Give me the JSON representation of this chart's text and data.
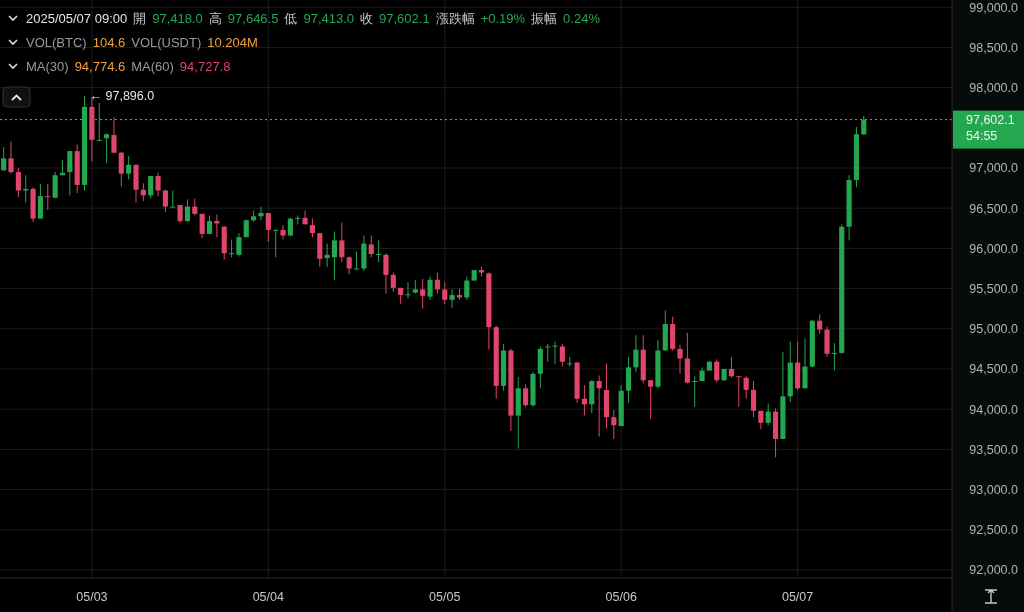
{
  "chart_data": {
    "type": "candlestick",
    "x": [
      "2025-05-02T12:00",
      "2025-05-02T13:00",
      "2025-05-02T14:00",
      "2025-05-02T15:00",
      "2025-05-02T16:00",
      "2025-05-02T17:00",
      "2025-05-02T18:00",
      "2025-05-02T19:00",
      "2025-05-02T20:00",
      "2025-05-02T21:00",
      "2025-05-02T22:00",
      "2025-05-02T23:00",
      "2025-05-03T00:00",
      "2025-05-03T01:00",
      "2025-05-03T02:00",
      "2025-05-03T03:00",
      "2025-05-03T04:00",
      "2025-05-03T05:00",
      "2025-05-03T06:00",
      "2025-05-03T07:00",
      "2025-05-03T08:00",
      "2025-05-03T09:00",
      "2025-05-03T10:00",
      "2025-05-03T11:00",
      "2025-05-03T12:00",
      "2025-05-03T13:00",
      "2025-05-03T14:00",
      "2025-05-03T15:00",
      "2025-05-03T16:00",
      "2025-05-03T17:00",
      "2025-05-03T18:00",
      "2025-05-03T19:00",
      "2025-05-03T20:00",
      "2025-05-03T21:00",
      "2025-05-03T22:00",
      "2025-05-03T23:00",
      "2025-05-04T00:00",
      "2025-05-04T01:00",
      "2025-05-04T02:00",
      "2025-05-04T03:00",
      "2025-05-04T04:00",
      "2025-05-04T05:00",
      "2025-05-04T06:00",
      "2025-05-04T07:00",
      "2025-05-04T08:00",
      "2025-05-04T09:00",
      "2025-05-04T10:00",
      "2025-05-04T11:00",
      "2025-05-04T12:00",
      "2025-05-04T13:00",
      "2025-05-04T14:00",
      "2025-05-04T15:00",
      "2025-05-04T16:00",
      "2025-05-04T17:00",
      "2025-05-04T18:00",
      "2025-05-04T19:00",
      "2025-05-04T20:00",
      "2025-05-04T21:00",
      "2025-05-04T22:00",
      "2025-05-04T23:00",
      "2025-05-05T00:00",
      "2025-05-05T01:00",
      "2025-05-05T02:00",
      "2025-05-05T03:00",
      "2025-05-05T04:00",
      "2025-05-05T05:00",
      "2025-05-05T06:00",
      "2025-05-05T07:00",
      "2025-05-05T08:00",
      "2025-05-05T09:00",
      "2025-05-05T10:00",
      "2025-05-05T11:00",
      "2025-05-05T12:00",
      "2025-05-05T13:00",
      "2025-05-05T14:00",
      "2025-05-05T15:00",
      "2025-05-05T16:00",
      "2025-05-05T17:00",
      "2025-05-05T18:00",
      "2025-05-05T19:00",
      "2025-05-05T20:00",
      "2025-05-05T21:00",
      "2025-05-05T22:00",
      "2025-05-05T23:00",
      "2025-05-06T00:00",
      "2025-05-06T01:00",
      "2025-05-06T02:00",
      "2025-05-06T03:00",
      "2025-05-06T04:00",
      "2025-05-06T05:00",
      "2025-05-06T06:00",
      "2025-05-06T07:00",
      "2025-05-06T08:00",
      "2025-05-06T09:00",
      "2025-05-06T10:00",
      "2025-05-06T11:00",
      "2025-05-06T12:00",
      "2025-05-06T13:00",
      "2025-05-06T14:00",
      "2025-05-06T15:00",
      "2025-05-06T16:00",
      "2025-05-06T17:00",
      "2025-05-06T18:00",
      "2025-05-06T19:00",
      "2025-05-06T20:00",
      "2025-05-06T21:00",
      "2025-05-06T22:00",
      "2025-05-06T23:00",
      "2025-05-07T00:00",
      "2025-05-07T01:00",
      "2025-05-07T02:00",
      "2025-05-07T03:00",
      "2025-05-07T04:00",
      "2025-05-07T05:00",
      "2025-05-07T06:00",
      "2025-05-07T07:00",
      "2025-05-07T08:00",
      "2025-05-07T09:00"
    ],
    "ohlc": [
      [
        96970,
        97260,
        96970,
        97120
      ],
      [
        97120,
        97330,
        96930,
        96950
      ],
      [
        96950,
        97000,
        96640,
        96720
      ],
      [
        96720,
        96910,
        96570,
        96740
      ],
      [
        96740,
        96760,
        96330,
        96370
      ],
      [
        96370,
        96800,
        96370,
        96650
      ],
      [
        96650,
        96800,
        96480,
        96640
      ],
      [
        96630,
        96950,
        96630,
        96910
      ],
      [
        96910,
        97100,
        96910,
        96940
      ],
      [
        96950,
        97210,
        96660,
        97210
      ],
      [
        97210,
        97290,
        96690,
        96790
      ],
      [
        96790,
        97896,
        96720,
        97760
      ],
      [
        97760,
        97880,
        97080,
        97350
      ],
      [
        97340,
        97810,
        97330,
        97350
      ],
      [
        97370,
        97430,
        97060,
        97420
      ],
      [
        97410,
        97630,
        97190,
        97190
      ],
      [
        97190,
        97200,
        96770,
        96930
      ],
      [
        96930,
        97150,
        96860,
        97040
      ],
      [
        97040,
        97040,
        96570,
        96730
      ],
      [
        96730,
        96810,
        96590,
        96660
      ],
      [
        96660,
        96900,
        96620,
        96900
      ],
      [
        96900,
        96940,
        96650,
        96720
      ],
      [
        96720,
        96730,
        96450,
        96520
      ],
      [
        96520,
        96720,
        96510,
        96520
      ],
      [
        96540,
        96540,
        96320,
        96340
      ],
      [
        96340,
        96610,
        96330,
        96520
      ],
      [
        96520,
        96620,
        96410,
        96430
      ],
      [
        96430,
        96430,
        96130,
        96180
      ],
      [
        96180,
        96410,
        96180,
        96340
      ],
      [
        96340,
        96420,
        96140,
        96310
      ],
      [
        96270,
        96280,
        95860,
        95940
      ],
      [
        95940,
        96110,
        95890,
        95940
      ],
      [
        95920,
        96190,
        95900,
        96140
      ],
      [
        96140,
        96360,
        96140,
        96350
      ],
      [
        96350,
        96470,
        96330,
        96400
      ],
      [
        96400,
        96520,
        96350,
        96440
      ],
      [
        96440,
        96440,
        96080,
        96230
      ],
      [
        96230,
        96230,
        95890,
        96230
      ],
      [
        96230,
        96290,
        96110,
        96160
      ],
      [
        96160,
        96380,
        96150,
        96370
      ],
      [
        96380,
        96410,
        96300,
        96380
      ],
      [
        96380,
        96470,
        96300,
        96300
      ],
      [
        96290,
        96370,
        96140,
        96190
      ],
      [
        96190,
        96190,
        95770,
        95870
      ],
      [
        95880,
        96060,
        95770,
        95920
      ],
      [
        95890,
        96210,
        95610,
        96100
      ],
      [
        96100,
        96320,
        95830,
        95890
      ],
      [
        95890,
        95900,
        95680,
        95750
      ],
      [
        95750,
        95960,
        95740,
        95750
      ],
      [
        95750,
        96160,
        95720,
        96060
      ],
      [
        96050,
        96160,
        95890,
        95930
      ],
      [
        95930,
        96100,
        95830,
        95930
      ],
      [
        95920,
        95940,
        95440,
        95670
      ],
      [
        95670,
        95700,
        95460,
        95510
      ],
      [
        95510,
        95510,
        95310,
        95420
      ],
      [
        95430,
        95580,
        95380,
        95430
      ],
      [
        95450,
        95610,
        95440,
        95490
      ],
      [
        95490,
        95620,
        95250,
        95410
      ],
      [
        95400,
        95650,
        95360,
        95610
      ],
      [
        95610,
        95700,
        95440,
        95490
      ],
      [
        95490,
        95580,
        95310,
        95360
      ],
      [
        95360,
        95490,
        95260,
        95420
      ],
      [
        95420,
        95500,
        95360,
        95390
      ],
      [
        95390,
        95650,
        95360,
        95600
      ],
      [
        95600,
        95730,
        95600,
        95730
      ],
      [
        95730,
        95770,
        95650,
        95700
      ],
      [
        95690,
        95700,
        94740,
        95020
      ],
      [
        95020,
        95040,
        94130,
        94290
      ],
      [
        94290,
        94810,
        94230,
        94730
      ],
      [
        94730,
        94750,
        93730,
        93920
      ],
      [
        93920,
        94400,
        93510,
        94260
      ],
      [
        94260,
        94310,
        94030,
        94050
      ],
      [
        94050,
        94460,
        94030,
        94440
      ],
      [
        94440,
        94780,
        94260,
        94750
      ],
      [
        94770,
        94810,
        94590,
        94780
      ],
      [
        94790,
        94840,
        94560,
        94790
      ],
      [
        94780,
        94810,
        94530,
        94590
      ],
      [
        94570,
        94650,
        94530,
        94570
      ],
      [
        94580,
        94590,
        94080,
        94130
      ],
      [
        94130,
        94300,
        93920,
        94060
      ],
      [
        94060,
        94360,
        93950,
        94350
      ],
      [
        94350,
        94420,
        93660,
        94260
      ],
      [
        94240,
        94570,
        93760,
        93900
      ],
      [
        93900,
        93990,
        93630,
        93800
      ],
      [
        93790,
        94300,
        93790,
        94230
      ],
      [
        94230,
        94650,
        94080,
        94520
      ],
      [
        94520,
        94920,
        94460,
        94740
      ],
      [
        94740,
        94920,
        94320,
        94360
      ],
      [
        94360,
        94360,
        93880,
        94280
      ],
      [
        94280,
        94860,
        94260,
        94730
      ],
      [
        94730,
        95230,
        94730,
        95060
      ],
      [
        95060,
        95150,
        94730,
        94750
      ],
      [
        94750,
        94800,
        94440,
        94630
      ],
      [
        94630,
        94950,
        94320,
        94330
      ],
      [
        94340,
        94410,
        94030,
        94350
      ],
      [
        94350,
        94520,
        94350,
        94480
      ],
      [
        94480,
        94600,
        94480,
        94590
      ],
      [
        94590,
        94620,
        94330,
        94360
      ],
      [
        94360,
        94500,
        94350,
        94500
      ],
      [
        94500,
        94650,
        94390,
        94410
      ],
      [
        94410,
        94410,
        94030,
        94400
      ],
      [
        94390,
        94410,
        94130,
        94240
      ],
      [
        94240,
        94350,
        93900,
        93980
      ],
      [
        93980,
        93980,
        93750,
        93830
      ],
      [
        93830,
        94070,
        93800,
        93970
      ],
      [
        93970,
        94010,
        93400,
        93630
      ],
      [
        93630,
        94710,
        93630,
        94160
      ],
      [
        94160,
        94840,
        94090,
        94580
      ],
      [
        94580,
        94840,
        94240,
        94260
      ],
      [
        94260,
        94880,
        94260,
        94530
      ],
      [
        94530,
        95110,
        94520,
        95100
      ],
      [
        95100,
        95180,
        94940,
        94990
      ],
      [
        94990,
        95030,
        94650,
        94690
      ],
      [
        94690,
        94820,
        94480,
        94700
      ],
      [
        94700,
        96300,
        94690,
        96270
      ],
      [
        96270,
        96910,
        96100,
        96850
      ],
      [
        96850,
        97510,
        96760,
        97420
      ],
      [
        97418.0,
        97646.5,
        97413.0,
        97602.1
      ]
    ],
    "colors": [
      "#25a750",
      "#e0456b",
      "#e0456b",
      "#25a750",
      "#e0456b",
      "#25a750",
      "#e0456b",
      "#25a750",
      "#25a750",
      "#25a750",
      "#e0456b",
      "#25a750",
      "#e0456b",
      "#25a750",
      "#25a750",
      "#e0456b",
      "#e0456b",
      "#25a750",
      "#e0456b",
      "#e0456b",
      "#25a750",
      "#e0456b",
      "#e0456b",
      "#25a750",
      "#e0456b",
      "#25a750",
      "#e0456b",
      "#e0456b",
      "#25a750",
      "#e0456b",
      "#e0456b",
      "#25a750",
      "#25a750",
      "#25a750",
      "#25a750",
      "#25a750",
      "#e0456b",
      "#25a750",
      "#e0456b",
      "#25a750",
      "#25a750",
      "#e0456b",
      "#e0456b",
      "#e0456b",
      "#25a750",
      "#25a750",
      "#e0456b",
      "#e0456b",
      "#25a750",
      "#25a750",
      "#e0456b",
      "#25a750",
      "#e0456b",
      "#e0456b",
      "#e0456b",
      "#25a750",
      "#25a750",
      "#e0456b",
      "#25a750",
      "#e0456b",
      "#e0456b",
      "#25a750",
      "#e0456b",
      "#25a750",
      "#25a750",
      "#e0456b",
      "#e0456b",
      "#e0456b",
      "#25a750",
      "#e0456b",
      "#25a750",
      "#e0456b",
      "#25a750",
      "#25a750",
      "#25a750",
      "#25a750",
      "#e0456b",
      "#25a750",
      "#e0456b",
      "#e0456b",
      "#25a750",
      "#e0456b",
      "#e0456b",
      "#e0456b",
      "#25a750",
      "#25a750",
      "#25a750",
      "#e0456b",
      "#e0456b",
      "#25a750",
      "#25a750",
      "#e0456b",
      "#e0456b",
      "#e0456b",
      "#25a750",
      "#25a750",
      "#25a750",
      "#e0456b",
      "#25a750",
      "#e0456b",
      "#e0456b",
      "#e0456b",
      "#e0456b",
      "#e0456b",
      "#25a750",
      "#e0456b",
      "#25a750",
      "#25a750",
      "#e0456b",
      "#25a750",
      "#25a750",
      "#e0456b",
      "#e0456b",
      "#25a750",
      "#25a750",
      "#25a750",
      "#25a750",
      "#25a750"
    ],
    "xlim": [
      "2025-05-02T11:30",
      "2025-05-07T21:00"
    ],
    "xticks": [
      {
        "value": "2025-05-03",
        "label": "05/03"
      },
      {
        "value": "2025-05-04",
        "label": "05/04"
      },
      {
        "value": "2025-05-05",
        "label": "05/05"
      },
      {
        "value": "2025-05-06",
        "label": "05/06"
      },
      {
        "value": "2025-05-07",
        "label": "05/07"
      }
    ],
    "ylim": [
      91900,
      99090
    ],
    "yticks": [
      {
        "value": 92000,
        "label": "92,000.0"
      },
      {
        "value": 92500,
        "label": "92,500.0"
      },
      {
        "value": 93000,
        "label": "93,000.0"
      },
      {
        "value": 93500,
        "label": "93,500.0"
      },
      {
        "value": 94000,
        "label": "94,000.0"
      },
      {
        "value": 94500,
        "label": "94,500.0"
      },
      {
        "value": 95000,
        "label": "95,000.0"
      },
      {
        "value": 95500,
        "label": "95,500.0"
      },
      {
        "value": 96000,
        "label": "96,000.0"
      },
      {
        "value": 96500,
        "label": "96,500.0"
      },
      {
        "value": 97000,
        "label": "97,000.0"
      },
      {
        "value": 98000,
        "label": "98,000.0"
      },
      {
        "value": 98500,
        "label": "98,500.0"
      },
      {
        "value": 99000,
        "label": "99,000.0"
      }
    ],
    "grid": true,
    "ref_lines": [
      {
        "axis": "y",
        "value": 97602.1,
        "label": "97,602.1\n54:55",
        "color": "#9a9a9a",
        "line_style": "dotted"
      }
    ],
    "annotations": [
      "2025/05/07 09:00  開  97,418.0  高  97,646.5  低  97,413.0  收  97,602.1  漲跌幅  +0.19%  振幅  0.24%",
      "VOL(BTC)  104.6  VOL(USDT)  10.204M",
      "MA(30)  94,774.6  MA(60)  94,727.8",
      {
        "text": "← 97,896.0",
        "x": "2025-05-02T23:00",
        "y": 97896
      }
    ]
  }
}
